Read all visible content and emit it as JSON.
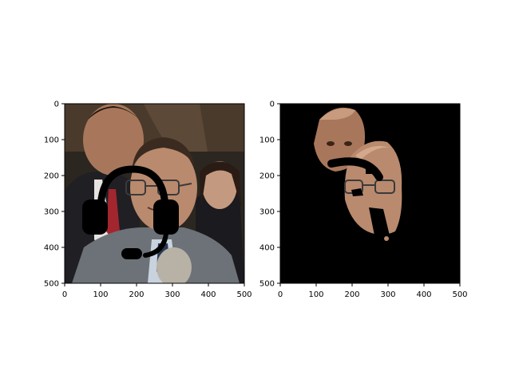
{
  "figure": {
    "panels": [
      {
        "name": "original-with-headset",
        "xticks": [
          "0",
          "100",
          "200",
          "300",
          "400",
          "500"
        ],
        "yticks": [
          "0",
          "100",
          "200",
          "300",
          "400",
          "500"
        ],
        "xlim": [
          0,
          500
        ],
        "ylim": [
          500,
          0
        ],
        "overlay_icon": "headset-icon",
        "background_color": "#2b2620"
      },
      {
        "name": "masked-faces",
        "xticks": [
          "0",
          "100",
          "200",
          "300",
          "400",
          "500"
        ],
        "yticks": [
          "0",
          "100",
          "200",
          "300",
          "400",
          "500"
        ],
        "xlim": [
          0,
          500
        ],
        "ylim": [
          500,
          0
        ],
        "background_color": "#000000"
      }
    ],
    "colors": {
      "skin": "#b98a6e",
      "skin_dark": "#8e6249",
      "suit_gray": "#6d7178",
      "dark_suit": "#2a2a2e",
      "tie_red": "#a3262e",
      "icon_black": "#000000"
    }
  }
}
